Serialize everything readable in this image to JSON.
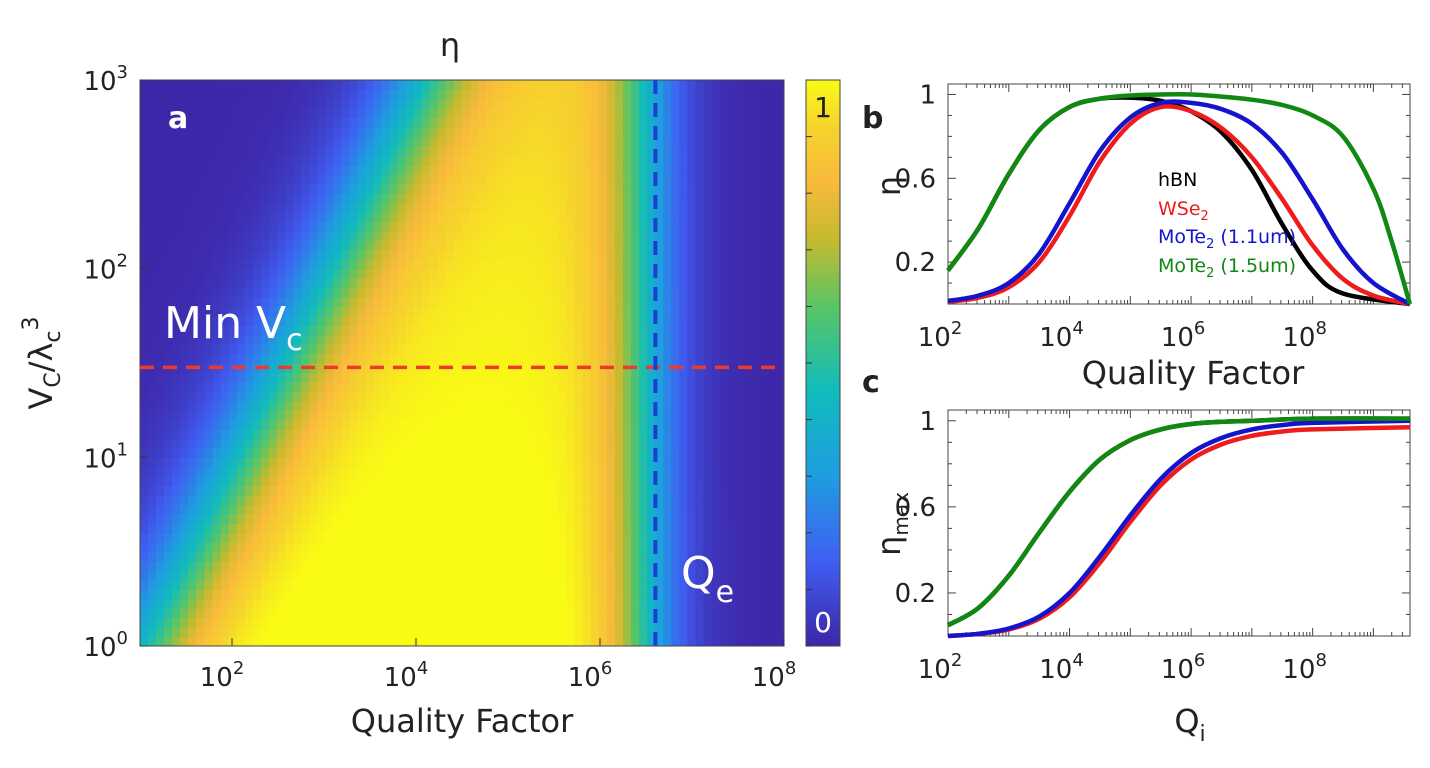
{
  "chart_data": [
    {
      "panel": "a",
      "type": "heatmap",
      "title": "η",
      "xlabel": "Quality Factor",
      "ylabel": "V",
      "ylabel_sub": "C",
      "ylabel_mid": "/λ",
      "ylabel_sub2": "c",
      "ylabel_sup": "3",
      "xscale": "log",
      "yscale": "log",
      "xlim": [
        10,
        100000000
      ],
      "ylim": [
        1,
        1000
      ],
      "xticks": [
        {
          "base": "10",
          "exp": "2"
        },
        {
          "base": "10",
          "exp": "4"
        },
        {
          "base": "10",
          "exp": "6"
        },
        {
          "base": "10",
          "exp": "8"
        }
      ],
      "yticks": [
        {
          "base": "10",
          "exp": "0"
        },
        {
          "base": "10",
          "exp": "1"
        },
        {
          "base": "10",
          "exp": "2"
        },
        {
          "base": "10",
          "exp": "3"
        }
      ],
      "colorbar": {
        "min": 0,
        "max": 1,
        "min_label": "0",
        "max_label": "1",
        "colormap": "parula"
      },
      "annotations": [
        {
          "text": "Min V",
          "sub": "c",
          "line": "horizontal",
          "value": 30,
          "color": "#ee3a2a"
        },
        {
          "text": "Q",
          "sub": "e",
          "line": "vertical",
          "value": 4000000,
          "color": "#1b3fd6"
        }
      ]
    },
    {
      "panel": "b",
      "type": "line",
      "xlabel": "Quality Factor",
      "ylabel": "η",
      "xscale": "log",
      "xlim": [
        100,
        4000000000
      ],
      "ylim": [
        0,
        1.05
      ],
      "xticks": [
        {
          "base": "10",
          "exp": "2"
        },
        {
          "base": "10",
          "exp": "4"
        },
        {
          "base": "10",
          "exp": "6"
        },
        {
          "base": "10",
          "exp": "8"
        }
      ],
      "yticks": [
        "0.2",
        "0.6",
        "1"
      ],
      "series": [
        {
          "name": "hBN",
          "name_sub": "",
          "color": "#000000",
          "log_x": [
            2,
            2.5,
            3,
            3.5,
            4,
            4.5,
            5,
            5.5,
            6,
            6.5,
            7,
            7.5,
            8,
            8.5,
            9.6
          ],
          "y": [
            0.16,
            0.36,
            0.62,
            0.83,
            0.94,
            0.98,
            0.985,
            0.97,
            0.92,
            0.82,
            0.64,
            0.38,
            0.16,
            0.05,
            0
          ]
        },
        {
          "name": "WSe",
          "name_sub": "2",
          "color": "#ee1c1c",
          "log_x": [
            2,
            2.5,
            3,
            3.5,
            4,
            4.5,
            5,
            5.5,
            6,
            6.5,
            7,
            7.5,
            8,
            8.5,
            9,
            9.6
          ],
          "y": [
            0.01,
            0.03,
            0.08,
            0.2,
            0.42,
            0.68,
            0.86,
            0.94,
            0.92,
            0.84,
            0.7,
            0.5,
            0.28,
            0.12,
            0.04,
            0
          ]
        },
        {
          "name": "MoTe",
          "name_sub": "2",
          "name_tail": " (1.1um)",
          "color": "#1414cc",
          "log_x": [
            2,
            2.5,
            3,
            3.5,
            4,
            4.5,
            5,
            5.5,
            6,
            6.5,
            7,
            7.5,
            8,
            8.5,
            9,
            9.6
          ],
          "y": [
            0.015,
            0.04,
            0.1,
            0.24,
            0.48,
            0.73,
            0.89,
            0.96,
            0.96,
            0.93,
            0.86,
            0.72,
            0.5,
            0.26,
            0.1,
            0
          ]
        },
        {
          "name": "MoTe",
          "name_sub": "2",
          "name_tail": " (1.5um)",
          "color": "#118811",
          "log_x": [
            2,
            2.5,
            3,
            3.5,
            4,
            4.5,
            5,
            5.5,
            6,
            6.5,
            7,
            7.5,
            8,
            8.5,
            9,
            9.3,
            9.6
          ],
          "y": [
            0.16,
            0.36,
            0.62,
            0.83,
            0.94,
            0.98,
            0.995,
            1,
            1,
            0.99,
            0.975,
            0.95,
            0.9,
            0.8,
            0.55,
            0.3,
            0
          ]
        }
      ]
    },
    {
      "panel": "c",
      "type": "line",
      "xlabel": "Q",
      "xlabel_sub": "i",
      "ylabel": "η",
      "ylabel_sub": "max",
      "xscale": "log",
      "xlim": [
        100,
        4000000000
      ],
      "ylim": [
        0,
        1.05
      ],
      "xticks": [
        {
          "base": "10",
          "exp": "2"
        },
        {
          "base": "10",
          "exp": "4"
        },
        {
          "base": "10",
          "exp": "6"
        },
        {
          "base": "10",
          "exp": "8"
        }
      ],
      "yticks": [
        "0.2",
        "0.6",
        "1"
      ],
      "series": [
        {
          "name": "hBN",
          "color": "#000000",
          "log_x": [
            2,
            2.5,
            3,
            3.5,
            4,
            4.5,
            5,
            5.5,
            6,
            6.5,
            7,
            8,
            9.6
          ],
          "y": [
            0.05,
            0.13,
            0.28,
            0.48,
            0.67,
            0.82,
            0.91,
            0.96,
            0.985,
            0.995,
            1,
            1.01,
            1.01
          ]
        },
        {
          "name": "WSe2",
          "color": "#ee1c1c",
          "log_x": [
            2,
            2.5,
            3,
            3.5,
            4,
            4.5,
            5,
            5.5,
            6,
            6.5,
            7,
            7.5,
            8,
            9.6
          ],
          "y": [
            0,
            0.01,
            0.03,
            0.08,
            0.18,
            0.34,
            0.53,
            0.7,
            0.82,
            0.89,
            0.93,
            0.95,
            0.96,
            0.97
          ]
        },
        {
          "name": "MoTe2 (1.1um)",
          "color": "#1414cc",
          "log_x": [
            2,
            2.5,
            3,
            3.5,
            4,
            4.5,
            5,
            5.5,
            6,
            6.5,
            7,
            7.5,
            8,
            9.6
          ],
          "y": [
            0,
            0.01,
            0.035,
            0.09,
            0.2,
            0.37,
            0.56,
            0.73,
            0.85,
            0.92,
            0.96,
            0.98,
            0.99,
            1
          ]
        },
        {
          "name": "MoTe2 (1.5um)",
          "color": "#118811",
          "log_x": [
            2,
            2.5,
            3,
            3.5,
            4,
            4.5,
            5,
            5.5,
            6,
            6.5,
            7,
            8,
            9.6
          ],
          "y": [
            0.05,
            0.13,
            0.28,
            0.48,
            0.67,
            0.82,
            0.91,
            0.96,
            0.985,
            0.995,
            1,
            1.01,
            1.01
          ]
        }
      ]
    }
  ]
}
